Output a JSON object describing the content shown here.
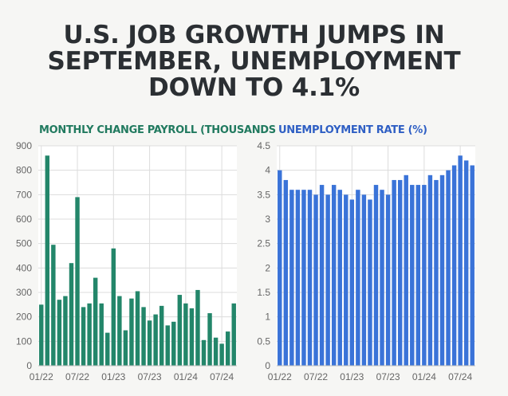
{
  "headline": "U.S. JOB GROWTH JUMPS IN SEPTEMBER, UNEMPLOYMENT DOWN TO 4.1%",
  "colors": {
    "headline": "#2b2f33",
    "payroll_bar": "#23866a",
    "payroll_title": "#217a5f",
    "unemployment_bar": "#3a73d8",
    "unemployment_title": "#2f5fc4",
    "grid": "#dcdcdc",
    "background": "#f6f6f4"
  },
  "chart_data": [
    {
      "type": "bar",
      "title": "MONTHLY CHANGE PAYROLL (THOUSANDS",
      "xlabel": "",
      "ylabel": "",
      "ylim": [
        0,
        900
      ],
      "yticks": [
        0,
        100,
        200,
        300,
        400,
        500,
        600,
        700,
        800,
        900
      ],
      "xtick_labels": [
        "01/22",
        "07/22",
        "01/23",
        "07/23",
        "01/24",
        "07/24"
      ],
      "xtick_indices": [
        0,
        6,
        12,
        18,
        24,
        30
      ],
      "grid": true,
      "values": [
        250,
        860,
        495,
        270,
        285,
        420,
        690,
        240,
        255,
        360,
        255,
        135,
        480,
        285,
        145,
        275,
        305,
        240,
        185,
        210,
        245,
        165,
        180,
        290,
        255,
        235,
        310,
        105,
        215,
        115,
        90,
        140,
        255
      ]
    },
    {
      "type": "bar",
      "title": "UNEMPLOYMENT RATE (%)",
      "xlabel": "",
      "ylabel": "",
      "ylim": [
        0,
        4.5
      ],
      "yticks": [
        0,
        0.5,
        1,
        1.5,
        2,
        2.5,
        3,
        3.5,
        4,
        4.5
      ],
      "xtick_labels": [
        "01/22",
        "07/22",
        "01/23",
        "07/23",
        "01/24",
        "07/24"
      ],
      "xtick_indices": [
        0,
        6,
        12,
        18,
        24,
        30
      ],
      "grid": true,
      "values": [
        4.0,
        3.8,
        3.6,
        3.6,
        3.6,
        3.6,
        3.5,
        3.7,
        3.5,
        3.7,
        3.6,
        3.5,
        3.4,
        3.6,
        3.5,
        3.4,
        3.7,
        3.6,
        3.5,
        3.8,
        3.8,
        3.9,
        3.7,
        3.7,
        3.7,
        3.9,
        3.8,
        3.9,
        4.0,
        4.1,
        4.3,
        4.2,
        4.1
      ]
    }
  ]
}
